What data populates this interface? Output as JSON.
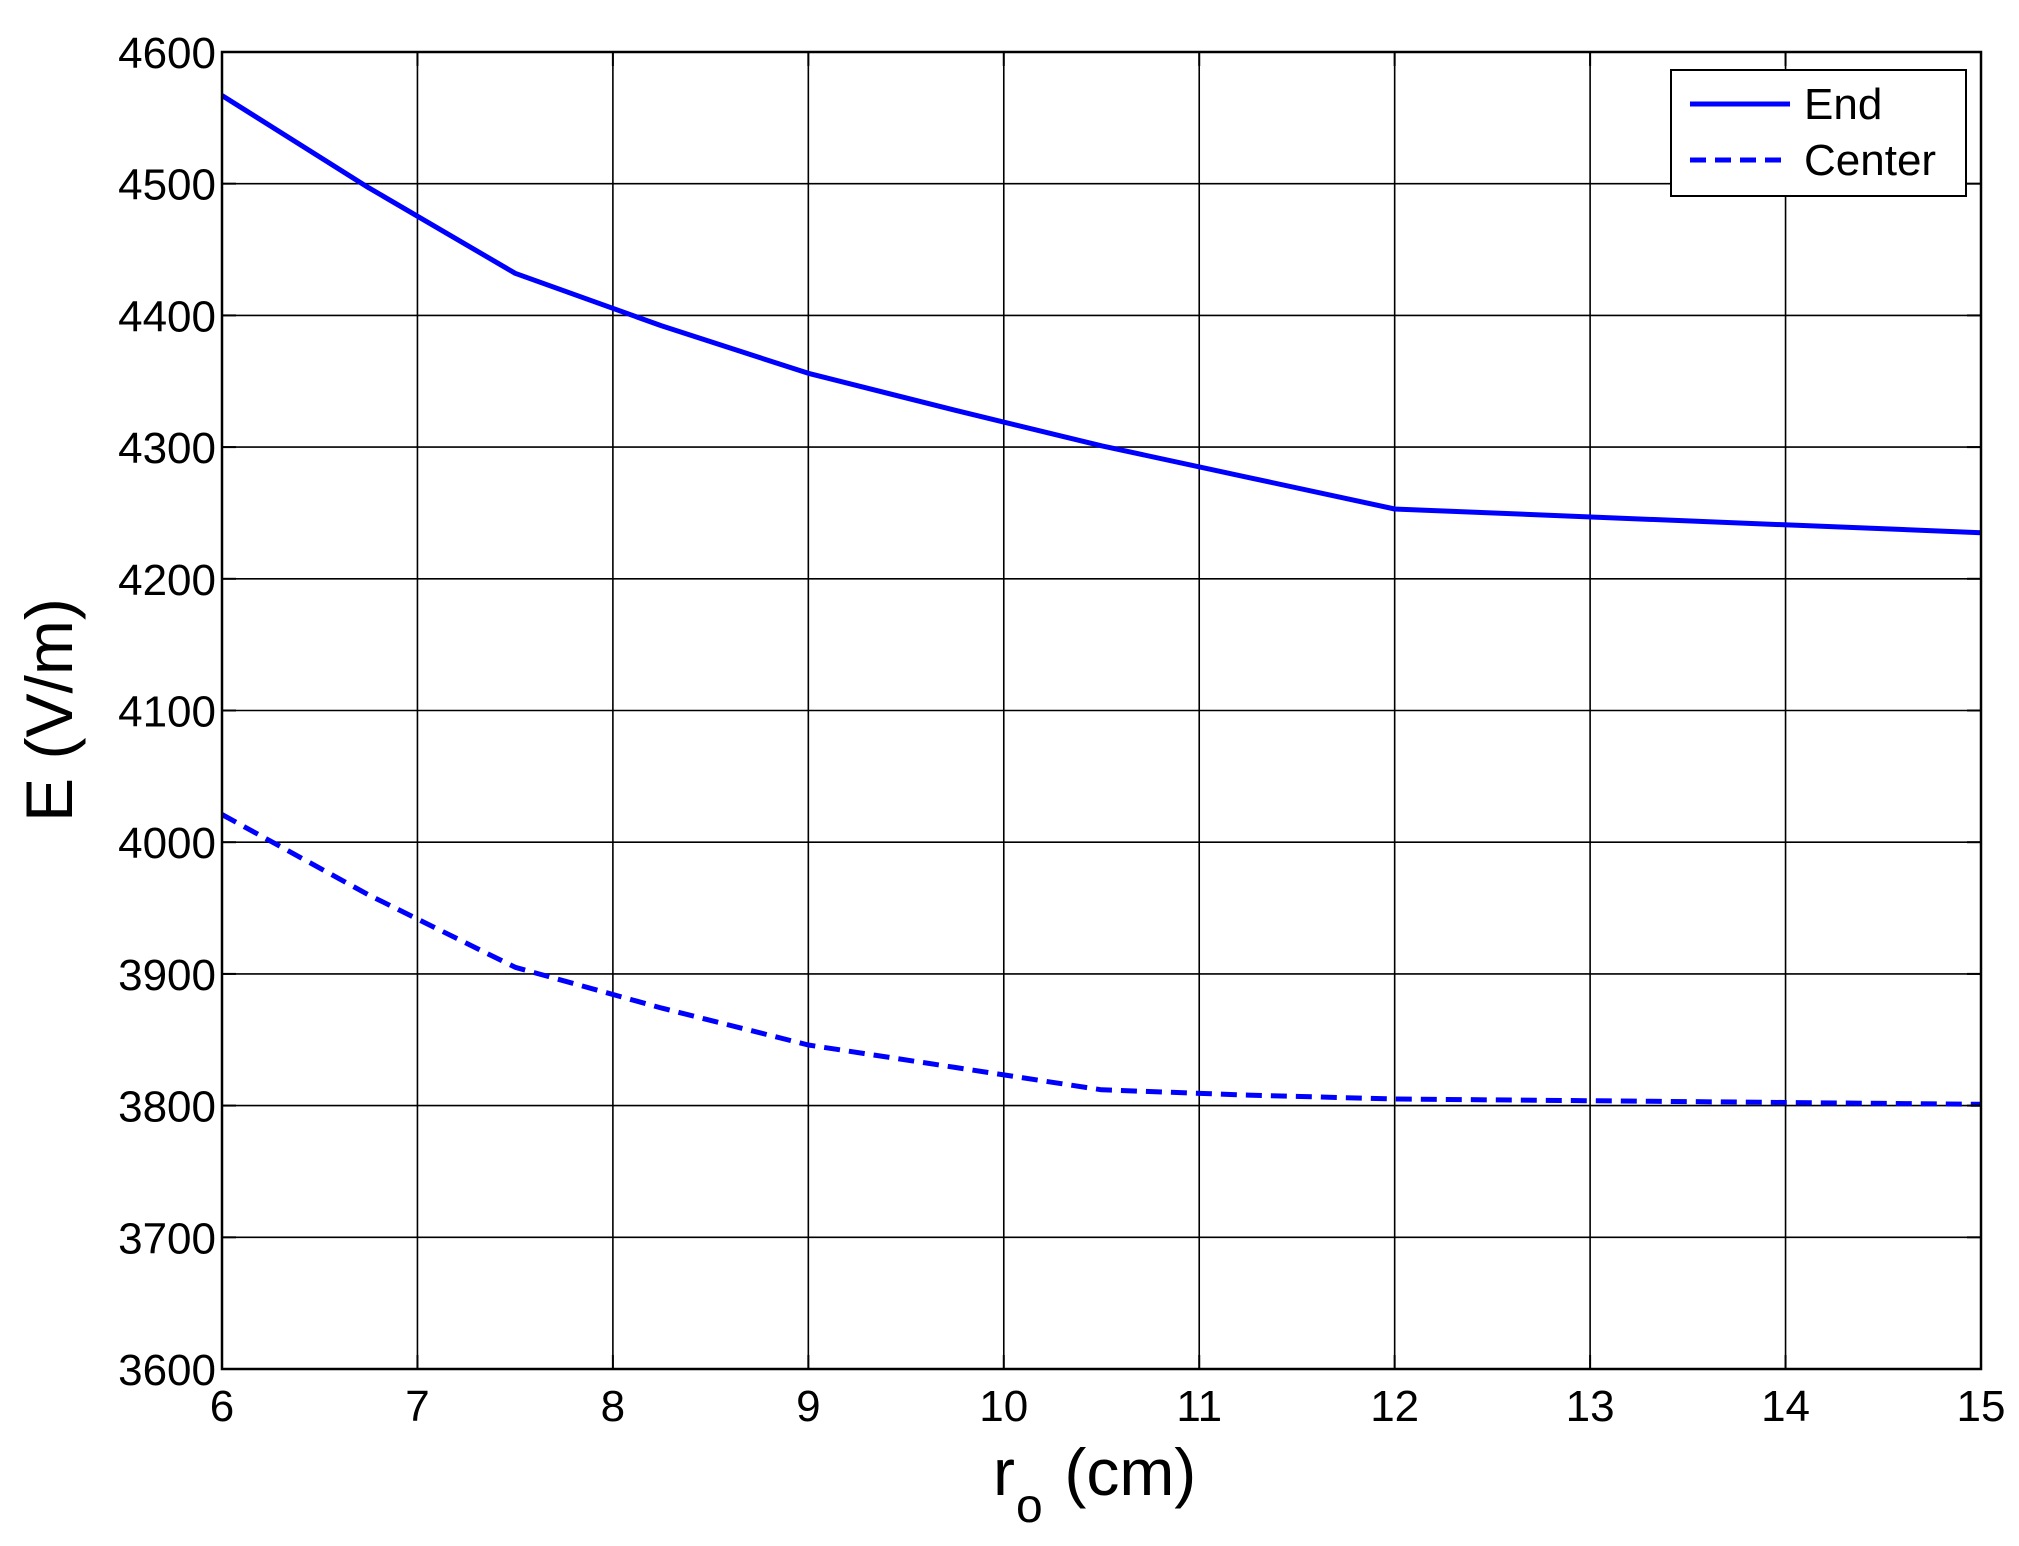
{
  "chart_data": {
    "type": "line",
    "title": "",
    "xlabel_main": "r",
    "xlabel_sub": "o",
    "xlabel_unit": " (cm)",
    "ylabel": "E (V/m)",
    "xlim": [
      6,
      15
    ],
    "ylim": [
      3600,
      4600
    ],
    "xticks": [
      6,
      7,
      8,
      9,
      10,
      11,
      12,
      13,
      14,
      15
    ],
    "yticks": [
      3600,
      3700,
      3800,
      3900,
      4000,
      4100,
      4200,
      4300,
      4400,
      4500,
      4600
    ],
    "grid": true,
    "legend_position": "top-right",
    "series": [
      {
        "name": "End",
        "style": "solid",
        "color": "#0000ff",
        "x": [
          6,
          6.75,
          7.5,
          8.25,
          9,
          9.75,
          10.5,
          11.25,
          12,
          13.5,
          15
        ],
        "y": [
          4567,
          4497,
          4432,
          4392,
          4356,
          4328,
          4301,
          4277,
          4253,
          4244,
          4235
        ]
      },
      {
        "name": "Center",
        "style": "dashed",
        "color": "#0000ff",
        "x": [
          6,
          6.75,
          7.5,
          8.25,
          9,
          9.75,
          10.5,
          11.25,
          12,
          13.5,
          15
        ],
        "y": [
          4021,
          3960,
          3905,
          3874,
          3846,
          3829,
          3812,
          3808,
          3805,
          3803,
          3801
        ]
      }
    ]
  }
}
